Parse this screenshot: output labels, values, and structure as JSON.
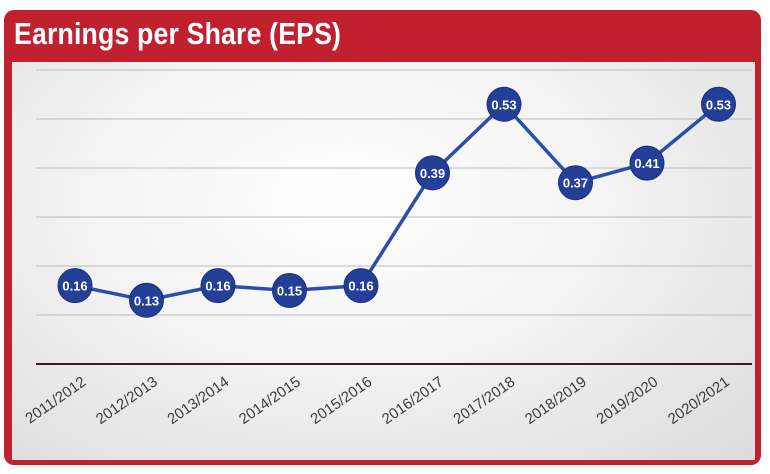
{
  "chart_data": {
    "type": "line",
    "title": "Earnings per Share (EPS)",
    "xlabel": "",
    "ylabel": "",
    "categories": [
      "2011/2012",
      "2012/2013",
      "2013/2014",
      "2014/2015",
      "2015/2016",
      "2016/2017",
      "2017/2018",
      "2018/2019",
      "2019/2020",
      "2020/2021"
    ],
    "series": [
      {
        "values": [
          0.16,
          0.13,
          0.16,
          0.15,
          0.16,
          0.39,
          0.53,
          0.37,
          0.41,
          0.53
        ]
      }
    ],
    "data_labels": [
      "0.16",
      "0.13",
      "0.16",
      "0.15",
      "0.16",
      "0.39",
      "0.53",
      "0.37",
      "0.41",
      "0.53"
    ],
    "ylim": [
      0,
      0.6
    ],
    "grid": true,
    "legend": "none",
    "colors": {
      "frame": "#c1202f",
      "line": "#2b4fa8",
      "marker": "#233f98",
      "gridline": "#bcbcbc",
      "baseline": "#3a1c1c"
    }
  }
}
